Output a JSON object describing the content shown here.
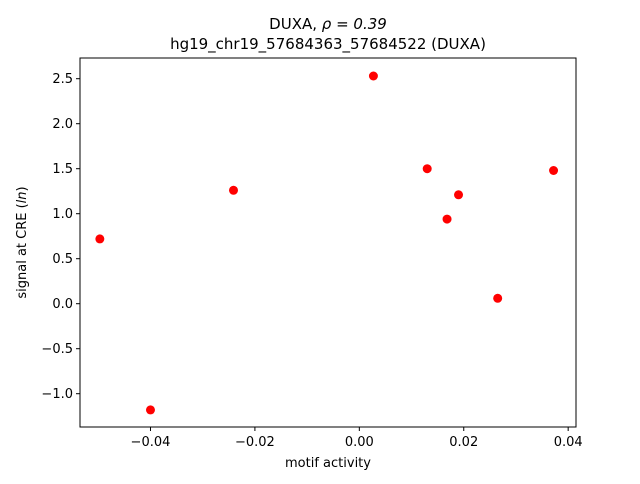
{
  "chart_data": {
    "type": "scatter",
    "title_line1_prefix": "DUXA, ",
    "title_line1_rho": "ρ = 0.39",
    "title_line2": "hg19_chr19_57684363_57684522 (DUXA)",
    "xlabel": "motif activity",
    "ylabel_prefix": "signal at CRE (",
    "ylabel_italic": "ln",
    "ylabel_suffix": ")",
    "xlim": [
      -0.0535,
      0.0415
    ],
    "ylim": [
      -1.37,
      2.73
    ],
    "x_ticks": [
      -0.04,
      -0.02,
      0.0,
      0.02,
      0.04
    ],
    "x_tick_labels": [
      "−0.04",
      "−0.02",
      "0.00",
      "0.02",
      "0.04"
    ],
    "y_ticks": [
      -1.0,
      -0.5,
      0.0,
      0.5,
      1.0,
      1.5,
      2.0,
      2.5
    ],
    "y_tick_labels": [
      "−1.0",
      "−0.5",
      "0.0",
      "0.5",
      "1.0",
      "1.5",
      "2.0",
      "2.5"
    ],
    "grid": false,
    "marker_color": "#ff0000",
    "points": [
      {
        "x": -0.0497,
        "y": 0.72
      },
      {
        "x": -0.04,
        "y": -1.18
      },
      {
        "x": -0.0241,
        "y": 1.26
      },
      {
        "x": 0.0027,
        "y": 2.53
      },
      {
        "x": 0.013,
        "y": 1.5
      },
      {
        "x": 0.0168,
        "y": 0.94
      },
      {
        "x": 0.019,
        "y": 1.21
      },
      {
        "x": 0.0265,
        "y": 0.06
      },
      {
        "x": 0.0372,
        "y": 1.48
      }
    ]
  }
}
